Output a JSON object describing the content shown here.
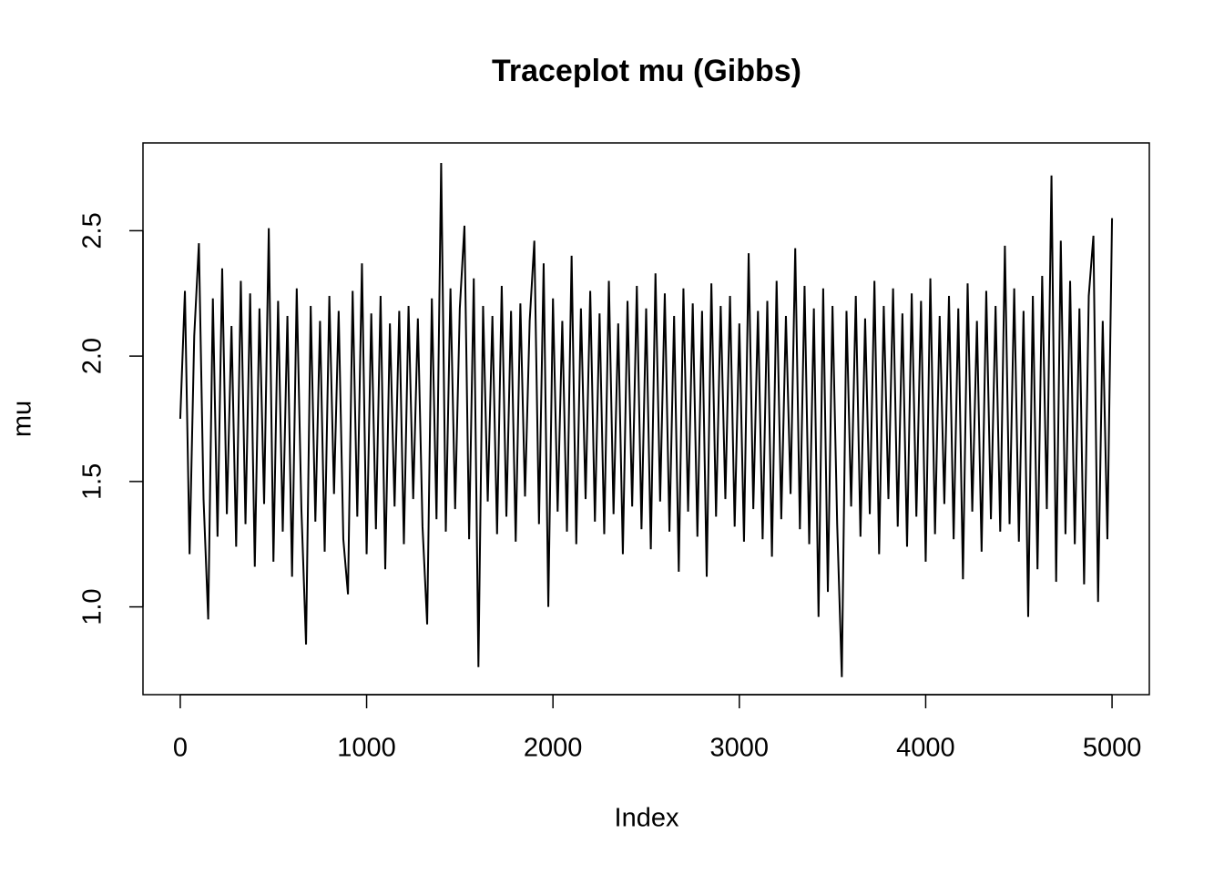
{
  "chart_data": {
    "type": "line",
    "title": "Traceplot mu (Gibbs)",
    "x_label": "Index",
    "y_label": "mu",
    "color": "#000000",
    "x": [
      0,
      25,
      50,
      75,
      100,
      125,
      150,
      175,
      200,
      225,
      250,
      275,
      300,
      325,
      350,
      375,
      400,
      425,
      450,
      475,
      500,
      525,
      550,
      575,
      600,
      625,
      650,
      675,
      700,
      725,
      750,
      775,
      800,
      825,
      850,
      875,
      900,
      925,
      950,
      975,
      1000,
      1025,
      1050,
      1075,
      1100,
      1125,
      1150,
      1175,
      1200,
      1225,
      1250,
      1275,
      1300,
      1325,
      1350,
      1375,
      1400,
      1425,
      1450,
      1475,
      1500,
      1525,
      1550,
      1575,
      1600,
      1625,
      1650,
      1675,
      1700,
      1725,
      1750,
      1775,
      1800,
      1825,
      1850,
      1875,
      1900,
      1925,
      1950,
      1975,
      2000,
      2025,
      2050,
      2075,
      2100,
      2125,
      2150,
      2175,
      2200,
      2225,
      2250,
      2275,
      2300,
      2325,
      2350,
      2375,
      2400,
      2425,
      2450,
      2475,
      2500,
      2525,
      2550,
      2575,
      2600,
      2625,
      2650,
      2675,
      2700,
      2725,
      2750,
      2775,
      2800,
      2825,
      2850,
      2875,
      2900,
      2925,
      2950,
      2975,
      3000,
      3025,
      3050,
      3075,
      3100,
      3125,
      3150,
      3175,
      3200,
      3225,
      3250,
      3275,
      3300,
      3325,
      3350,
      3375,
      3400,
      3425,
      3450,
      3475,
      3500,
      3525,
      3550,
      3575,
      3600,
      3625,
      3650,
      3675,
      3700,
      3725,
      3750,
      3775,
      3800,
      3825,
      3850,
      3875,
      3900,
      3925,
      3950,
      3975,
      4000,
      4025,
      4050,
      4075,
      4100,
      4125,
      4150,
      4175,
      4200,
      4225,
      4250,
      4275,
      4300,
      4325,
      4350,
      4375,
      4400,
      4425,
      4450,
      4475,
      4500,
      4525,
      4550,
      4575,
      4600,
      4625,
      4650,
      4675,
      4700,
      4725,
      4750,
      4775,
      4800,
      4825,
      4850,
      4875,
      4900,
      4925,
      4950,
      4975,
      5000
    ],
    "values": [
      1.75,
      2.26,
      1.21,
      2.08,
      2.45,
      1.43,
      0.95,
      2.23,
      1.28,
      2.35,
      1.37,
      2.12,
      1.24,
      2.3,
      1.33,
      2.25,
      1.16,
      2.19,
      1.41,
      2.51,
      1.18,
      2.22,
      1.3,
      2.16,
      1.12,
      2.27,
      1.39,
      0.85,
      2.2,
      1.34,
      2.14,
      1.22,
      2.24,
      1.45,
      2.18,
      1.27,
      1.05,
      2.26,
      1.36,
      2.37,
      1.21,
      2.17,
      1.31,
      2.24,
      1.15,
      2.13,
      1.4,
      2.18,
      1.25,
      2.2,
      1.43,
      2.15,
      1.32,
      0.93,
      2.23,
      1.35,
      2.77,
      1.3,
      2.27,
      1.39,
      2.19,
      2.52,
      1.27,
      2.31,
      0.76,
      2.2,
      1.42,
      2.16,
      1.29,
      2.28,
      1.36,
      2.18,
      1.26,
      2.21,
      1.44,
      2.14,
      2.46,
      1.33,
      2.37,
      1.0,
      2.23,
      1.38,
      2.14,
      1.3,
      2.4,
      1.25,
      2.19,
      1.43,
      2.26,
      1.34,
      2.17,
      1.29,
      2.3,
      1.37,
      2.13,
      1.21,
      2.22,
      1.4,
      2.28,
      1.31,
      2.19,
      1.23,
      2.33,
      1.42,
      2.25,
      1.3,
      2.16,
      1.14,
      2.27,
      1.38,
      2.21,
      1.28,
      2.18,
      1.12,
      2.29,
      1.36,
      2.2,
      1.43,
      2.24,
      1.32,
      2.13,
      1.26,
      2.41,
      1.39,
      2.18,
      1.27,
      2.22,
      1.2,
      2.3,
      1.35,
      2.16,
      1.45,
      2.43,
      1.31,
      2.28,
      1.25,
      2.19,
      0.96,
      2.27,
      1.06,
      2.2,
      1.33,
      0.72,
      2.18,
      1.4,
      2.24,
      1.28,
      2.15,
      1.37,
      2.3,
      1.21,
      2.2,
      1.43,
      2.27,
      1.32,
      2.17,
      1.24,
      2.25,
      1.36,
      2.22,
      1.18,
      2.31,
      1.29,
      2.16,
      1.41,
      2.24,
      1.27,
      2.19,
      1.11,
      2.29,
      1.38,
      2.14,
      1.22,
      2.26,
      1.35,
      2.2,
      1.3,
      2.44,
      1.33,
      2.27,
      1.26,
      2.18,
      0.96,
      2.24,
      1.15,
      2.32,
      1.39,
      2.72,
      1.1,
      2.46,
      1.29,
      2.3,
      1.25,
      2.19,
      1.09,
      2.24,
      2.48,
      1.02,
      2.14,
      1.27,
      2.55
    ],
    "xlim": [
      -200,
      5200
    ],
    "ylim": [
      0.65,
      2.85
    ],
    "xticks": [
      0,
      1000,
      2000,
      3000,
      4000,
      5000
    ],
    "yticks": [
      {
        "value": 1,
        "label": "1.0"
      },
      {
        "value": 1.5,
        "label": "1.5"
      },
      {
        "value": 2,
        "label": "2.0"
      },
      {
        "value": 2.5,
        "label": "2.5"
      }
    ]
  }
}
